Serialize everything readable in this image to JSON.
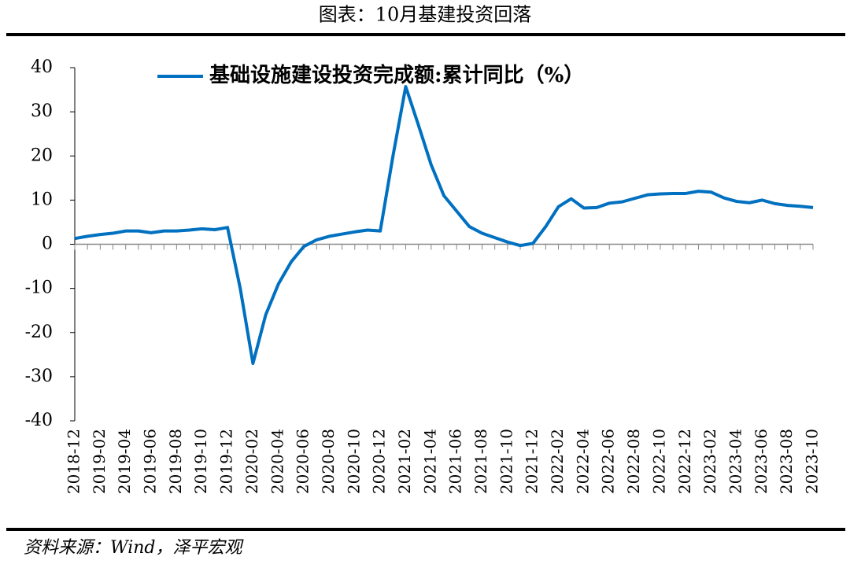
{
  "header": {
    "title": "图表：10月基建投资回落"
  },
  "chart_data": {
    "type": "line",
    "categories": [
      "2018-12",
      null,
      "2019-02",
      null,
      "2019-04",
      null,
      "2019-06",
      null,
      "2019-08",
      null,
      "2019-10",
      null,
      "2019-12",
      null,
      "2020-02",
      null,
      "2020-04",
      null,
      "2020-06",
      null,
      "2020-08",
      null,
      "2020-10",
      null,
      "2020-12",
      null,
      "2021-02",
      null,
      "2021-04",
      null,
      "2021-06",
      null,
      "2021-08",
      null,
      "2021-10",
      null,
      "2021-12",
      null,
      "2022-02",
      null,
      "2022-04",
      null,
      "2022-06",
      null,
      "2022-08",
      null,
      "2022-10",
      null,
      "2022-12",
      null,
      "2023-02",
      null,
      "2023-04",
      null,
      "2023-06",
      null,
      "2023-08",
      null,
      "2023-10"
    ],
    "series": [
      {
        "name": "基础设施建设投资完成额:累计同比（%）",
        "color": "#0070c0",
        "values": [
          1.3,
          1.8,
          2.2,
          2.5,
          3.0,
          3.0,
          2.6,
          3.0,
          3.0,
          3.2,
          3.5,
          3.3,
          3.8,
          -10,
          -27,
          -16,
          -9,
          -4,
          -0.5,
          1.0,
          1.8,
          2.3,
          2.8,
          3.2,
          3.0,
          20,
          35.7,
          27,
          18,
          11,
          7.5,
          4,
          2.5,
          1.5,
          0.5,
          -0.3,
          0.2,
          4,
          8.5,
          10.3,
          8.2,
          8.3,
          9.3,
          9.6,
          10.4,
          11.2,
          11.4,
          11.5,
          11.5,
          12.0,
          11.8,
          10.5,
          9.7,
          9.4,
          10.0,
          9.2,
          8.8,
          8.6,
          8.3
        ]
      }
    ],
    "ylim": [
      -40,
      40
    ],
    "yticks": [
      -40,
      -30,
      -20,
      -10,
      0,
      10,
      20,
      30,
      40
    ]
  },
  "footer": {
    "source": "资料来源：Wind，泽平宏观"
  }
}
